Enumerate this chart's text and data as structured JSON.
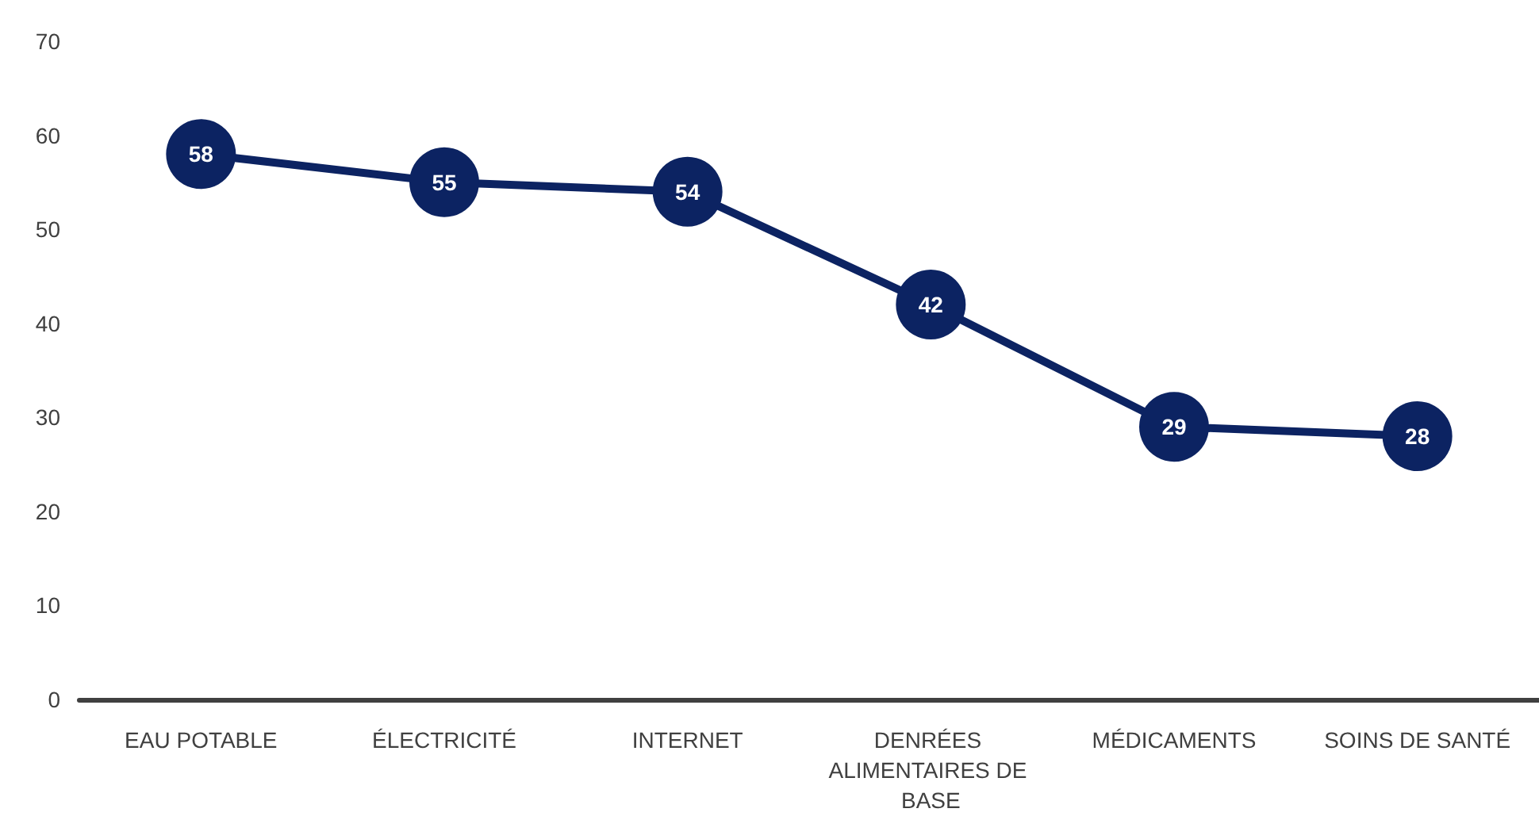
{
  "chart_data": {
    "type": "line",
    "categories": [
      "EAU POTABLE",
      "ÉLECTRICITÉ",
      "INTERNET",
      "DENRÉES ALIMENTAIRES DE BASE",
      "MÉDICAMENTS",
      "SOINS DE SANTÉ"
    ],
    "series": [
      {
        "color": "#0c2362",
        "values": [
          58,
          55,
          54,
          42,
          29,
          28
        ]
      }
    ],
    "ylim": [
      0,
      70
    ],
    "yticks": [
      0,
      10,
      20,
      30,
      40,
      50,
      60,
      70
    ],
    "grid": false,
    "marker": "circle",
    "line_style": "solid",
    "data_labels": true
  }
}
